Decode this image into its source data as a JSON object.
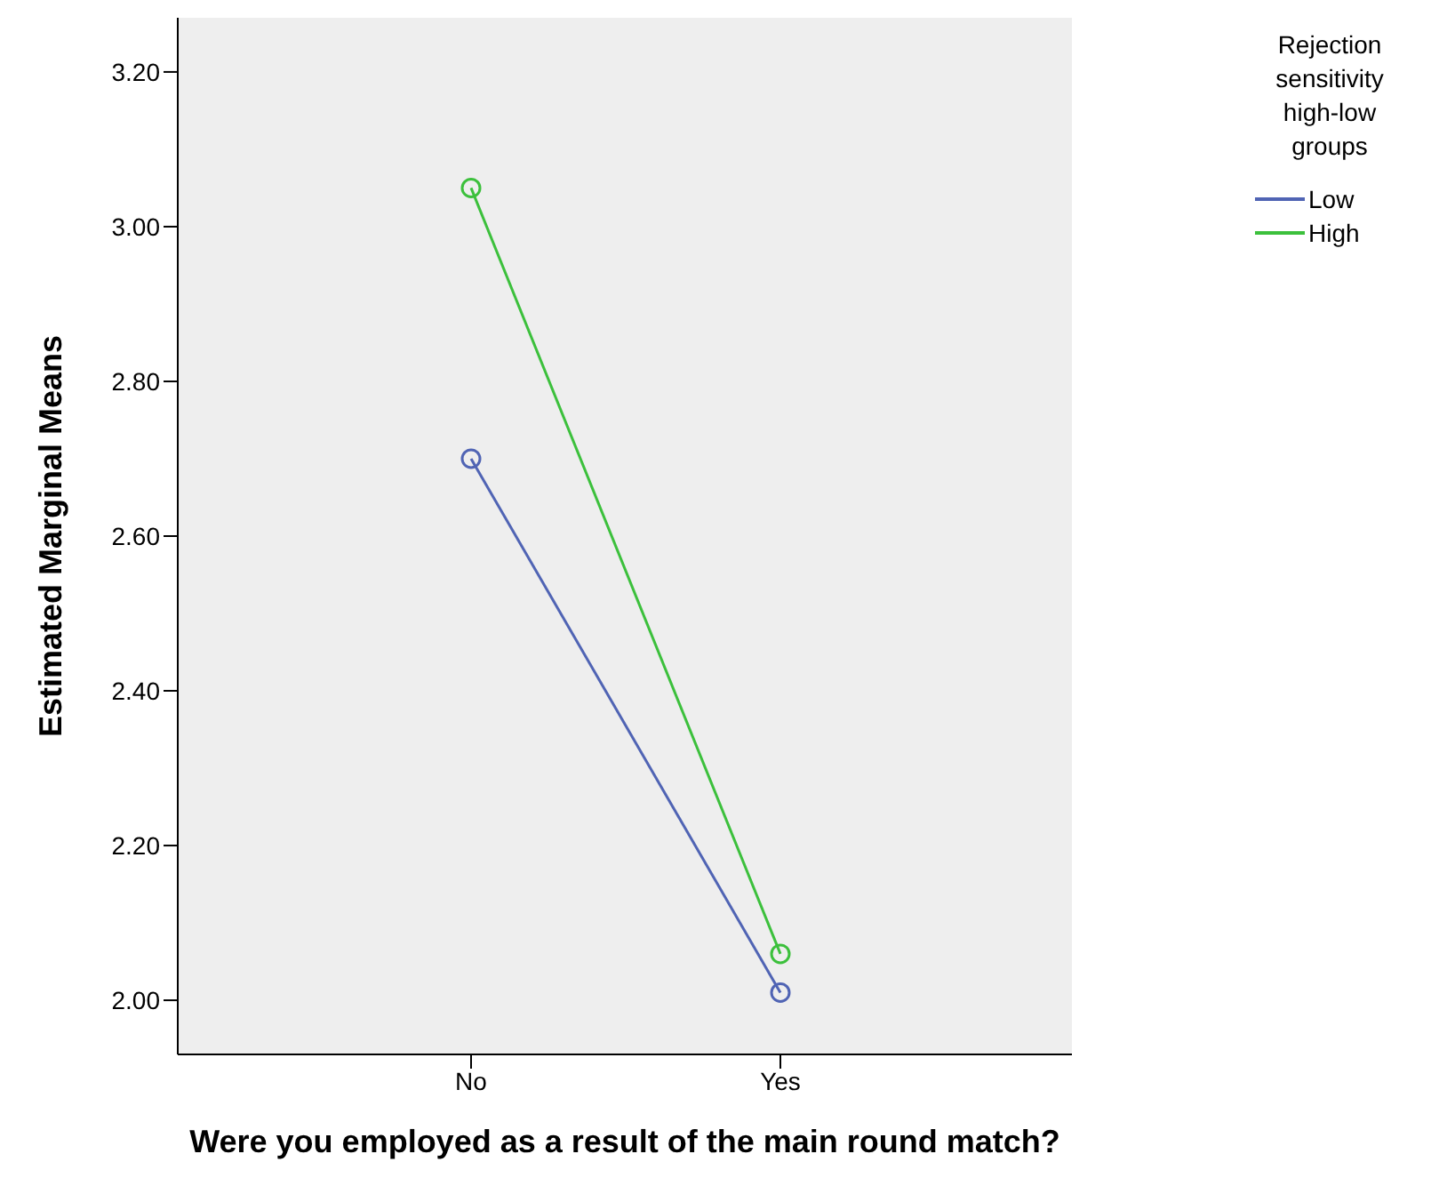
{
  "chart_data": {
    "type": "line",
    "xlabel": "Were you employed as a result of the main round match?",
    "ylabel": "Estimated Marginal Means",
    "legend_title": "Rejection sensitivity high-low groups",
    "categories": [
      "No",
      "Yes"
    ],
    "series": [
      {
        "name": "Low",
        "color": "#5064b4",
        "values": [
          2.7,
          2.01
        ]
      },
      {
        "name": "High",
        "color": "#3cc03c",
        "values": [
          3.05,
          2.06
        ]
      }
    ],
    "ylim": [
      1.93,
      3.27
    ],
    "yticks": [
      {
        "value": 2.0,
        "label": "2.00"
      },
      {
        "value": 2.2,
        "label": "2.20"
      },
      {
        "value": 2.4,
        "label": "2.40"
      },
      {
        "value": 2.6,
        "label": "2.60"
      },
      {
        "value": 2.8,
        "label": "2.80"
      },
      {
        "value": 3.0,
        "label": "3.00"
      },
      {
        "value": 3.2,
        "label": "3.20"
      }
    ],
    "grid": false,
    "legend": "right",
    "marker": "circle",
    "line_style": "solid"
  }
}
